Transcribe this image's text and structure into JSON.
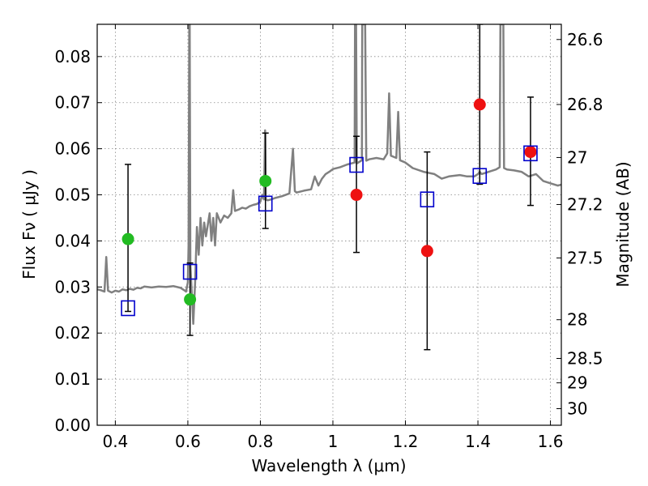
{
  "chart_data": {
    "type": "scatter",
    "xlabel": "Wavelength  λ (μm)",
    "ylabel": "Flux  Fν  ( μJy )",
    "y2label": "Magnitude (AB)",
    "xlim": [
      0.35,
      1.63
    ],
    "ylim": [
      0.0,
      0.087
    ],
    "grid": true,
    "x_ticks": [
      {
        "value": 0.4,
        "label": "0.4"
      },
      {
        "value": 0.6,
        "label": "0.6"
      },
      {
        "value": 0.8,
        "label": "0.8"
      },
      {
        "value": 1.0,
        "label": "1"
      },
      {
        "value": 1.2,
        "label": "1.2"
      },
      {
        "value": 1.4,
        "label": "1.4"
      },
      {
        "value": 1.6,
        "label": "1.6"
      }
    ],
    "y_ticks": [
      {
        "value": 0.0,
        "label": "0.00"
      },
      {
        "value": 0.01,
        "label": "0.01"
      },
      {
        "value": 0.02,
        "label": "0.02"
      },
      {
        "value": 0.03,
        "label": "0.03"
      },
      {
        "value": 0.04,
        "label": "0.04"
      },
      {
        "value": 0.05,
        "label": "0.05"
      },
      {
        "value": 0.06,
        "label": "0.06"
      },
      {
        "value": 0.07,
        "label": "0.07"
      },
      {
        "value": 0.08,
        "label": "0.08"
      }
    ],
    "y2_ticks": [
      {
        "flux": 0.0837,
        "label": "26.6"
      },
      {
        "flux": 0.0696,
        "label": "26.8"
      },
      {
        "flux": 0.0581,
        "label": "27"
      },
      {
        "flux": 0.0479,
        "label": "27.2"
      },
      {
        "flux": 0.0363,
        "label": "27.5"
      },
      {
        "flux": 0.0229,
        "label": "28"
      },
      {
        "flux": 0.0145,
        "label": "28.5"
      },
      {
        "flux": 0.0092,
        "label": "29"
      },
      {
        "flux": 0.0036,
        "label": "30"
      }
    ],
    "colors": {
      "model": "#808080",
      "green": "#22bb22",
      "red": "#ee1111",
      "squares": "#0000cc",
      "errorbar": "#000000",
      "grid": "#888888"
    },
    "series": [
      {
        "marker": "circle-green",
        "points": [
          {
            "x": 0.435,
            "y": 0.0404
          },
          {
            "x": 0.606,
            "y": 0.0273
          },
          {
            "x": 0.814,
            "y": 0.053
          }
        ]
      },
      {
        "marker": "circle-red",
        "points": [
          {
            "x": 1.065,
            "y": 0.05
          },
          {
            "x": 1.26,
            "y": 0.0378
          },
          {
            "x": 1.405,
            "y": 0.0696
          },
          {
            "x": 1.545,
            "y": 0.0593
          }
        ]
      },
      {
        "marker": "square-open",
        "points": [
          {
            "x": 0.435,
            "y": 0.0254
          },
          {
            "x": 0.606,
            "y": 0.0333
          },
          {
            "x": 0.814,
            "y": 0.0481
          },
          {
            "x": 1.065,
            "y": 0.0565
          },
          {
            "x": 1.26,
            "y": 0.049
          },
          {
            "x": 1.405,
            "y": 0.0541
          },
          {
            "x": 1.545,
            "y": 0.059
          }
        ]
      }
    ],
    "errorbars": [
      {
        "x": 0.435,
        "low": 0.0247,
        "high": 0.0566
      },
      {
        "x": 0.606,
        "low": 0.0195,
        "high": 0.0352
      },
      {
        "x": 0.814,
        "low": 0.0427,
        "high": 0.0634
      },
      {
        "x": 1.065,
        "low": 0.0375,
        "high": 0.0627
      },
      {
        "x": 1.26,
        "low": 0.0164,
        "high": 0.0593
      },
      {
        "x": 1.405,
        "low": 0.0523,
        "high": 0.087
      },
      {
        "x": 1.545,
        "low": 0.0477,
        "high": 0.0712
      }
    ],
    "model_spectrum": [
      [
        0.35,
        0.0295
      ],
      [
        0.36,
        0.0293
      ],
      [
        0.37,
        0.029
      ],
      [
        0.375,
        0.0365
      ],
      [
        0.38,
        0.0292
      ],
      [
        0.39,
        0.0288
      ],
      [
        0.4,
        0.0292
      ],
      [
        0.41,
        0.029
      ],
      [
        0.42,
        0.0295
      ],
      [
        0.43,
        0.0293
      ],
      [
        0.44,
        0.0296
      ],
      [
        0.45,
        0.0294
      ],
      [
        0.46,
        0.0298
      ],
      [
        0.47,
        0.0297
      ],
      [
        0.48,
        0.0301
      ],
      [
        0.5,
        0.0299
      ],
      [
        0.52,
        0.0301
      ],
      [
        0.54,
        0.03
      ],
      [
        0.56,
        0.0302
      ],
      [
        0.58,
        0.0298
      ],
      [
        0.59,
        0.0293
      ],
      [
        0.595,
        0.029
      ],
      [
        0.6,
        0.031
      ],
      [
        0.602,
        0.039
      ],
      [
        0.604,
        0.087
      ],
      [
        0.605,
        0.087
      ],
      [
        0.607,
        0.035
      ],
      [
        0.61,
        0.03
      ],
      [
        0.615,
        0.022
      ],
      [
        0.62,
        0.031
      ],
      [
        0.625,
        0.043
      ],
      [
        0.63,
        0.037
      ],
      [
        0.635,
        0.045
      ],
      [
        0.64,
        0.039
      ],
      [
        0.645,
        0.044
      ],
      [
        0.65,
        0.041
      ],
      [
        0.66,
        0.046
      ],
      [
        0.665,
        0.04
      ],
      [
        0.67,
        0.045
      ],
      [
        0.675,
        0.039
      ],
      [
        0.68,
        0.046
      ],
      [
        0.69,
        0.044
      ],
      [
        0.7,
        0.0455
      ],
      [
        0.71,
        0.045
      ],
      [
        0.72,
        0.046
      ],
      [
        0.725,
        0.051
      ],
      [
        0.73,
        0.0465
      ],
      [
        0.74,
        0.0468
      ],
      [
        0.75,
        0.0472
      ],
      [
        0.76,
        0.047
      ],
      [
        0.77,
        0.0475
      ],
      [
        0.78,
        0.0478
      ],
      [
        0.79,
        0.048
      ],
      [
        0.8,
        0.0485
      ],
      [
        0.805,
        0.05
      ],
      [
        0.81,
        0.049
      ],
      [
        0.813,
        0.064
      ],
      [
        0.815,
        0.049
      ],
      [
        0.82,
        0.0488
      ],
      [
        0.83,
        0.049
      ],
      [
        0.84,
        0.0493
      ],
      [
        0.86,
        0.0497
      ],
      [
        0.88,
        0.0503
      ],
      [
        0.89,
        0.06
      ],
      [
        0.895,
        0.0508
      ],
      [
        0.9,
        0.0505
      ],
      [
        0.92,
        0.0509
      ],
      [
        0.94,
        0.0512
      ],
      [
        0.95,
        0.054
      ],
      [
        0.96,
        0.052
      ],
      [
        0.97,
        0.0535
      ],
      [
        0.98,
        0.0545
      ],
      [
        0.99,
        0.055
      ],
      [
        1.0,
        0.0556
      ],
      [
        1.02,
        0.056
      ],
      [
        1.04,
        0.0566
      ],
      [
        1.06,
        0.057
      ],
      [
        1.061,
        0.087
      ],
      [
        1.064,
        0.087
      ],
      [
        1.066,
        0.0568
      ],
      [
        1.08,
        0.0575
      ],
      [
        1.081,
        0.087
      ],
      [
        1.089,
        0.087
      ],
      [
        1.092,
        0.0574
      ],
      [
        1.1,
        0.0577
      ],
      [
        1.12,
        0.058
      ],
      [
        1.14,
        0.0577
      ],
      [
        1.15,
        0.059
      ],
      [
        1.155,
        0.072
      ],
      [
        1.16,
        0.0585
      ],
      [
        1.175,
        0.058
      ],
      [
        1.18,
        0.068
      ],
      [
        1.185,
        0.0575
      ],
      [
        1.2,
        0.057
      ],
      [
        1.22,
        0.0558
      ],
      [
        1.25,
        0.055
      ],
      [
        1.28,
        0.0545
      ],
      [
        1.3,
        0.0535
      ],
      [
        1.32,
        0.054
      ],
      [
        1.35,
        0.0543
      ],
      [
        1.37,
        0.054
      ],
      [
        1.39,
        0.054
      ],
      [
        1.4,
        0.0545
      ],
      [
        1.405,
        0.055
      ],
      [
        1.41,
        0.0545
      ],
      [
        1.43,
        0.055
      ],
      [
        1.45,
        0.0555
      ],
      [
        1.46,
        0.056
      ],
      [
        1.462,
        0.087
      ],
      [
        1.47,
        0.087
      ],
      [
        1.472,
        0.0558
      ],
      [
        1.48,
        0.0555
      ],
      [
        1.5,
        0.0553
      ],
      [
        1.52,
        0.055
      ],
      [
        1.54,
        0.054
      ],
      [
        1.56,
        0.0545
      ],
      [
        1.58,
        0.053
      ],
      [
        1.6,
        0.0525
      ],
      [
        1.62,
        0.052
      ],
      [
        1.63,
        0.0522
      ]
    ]
  }
}
